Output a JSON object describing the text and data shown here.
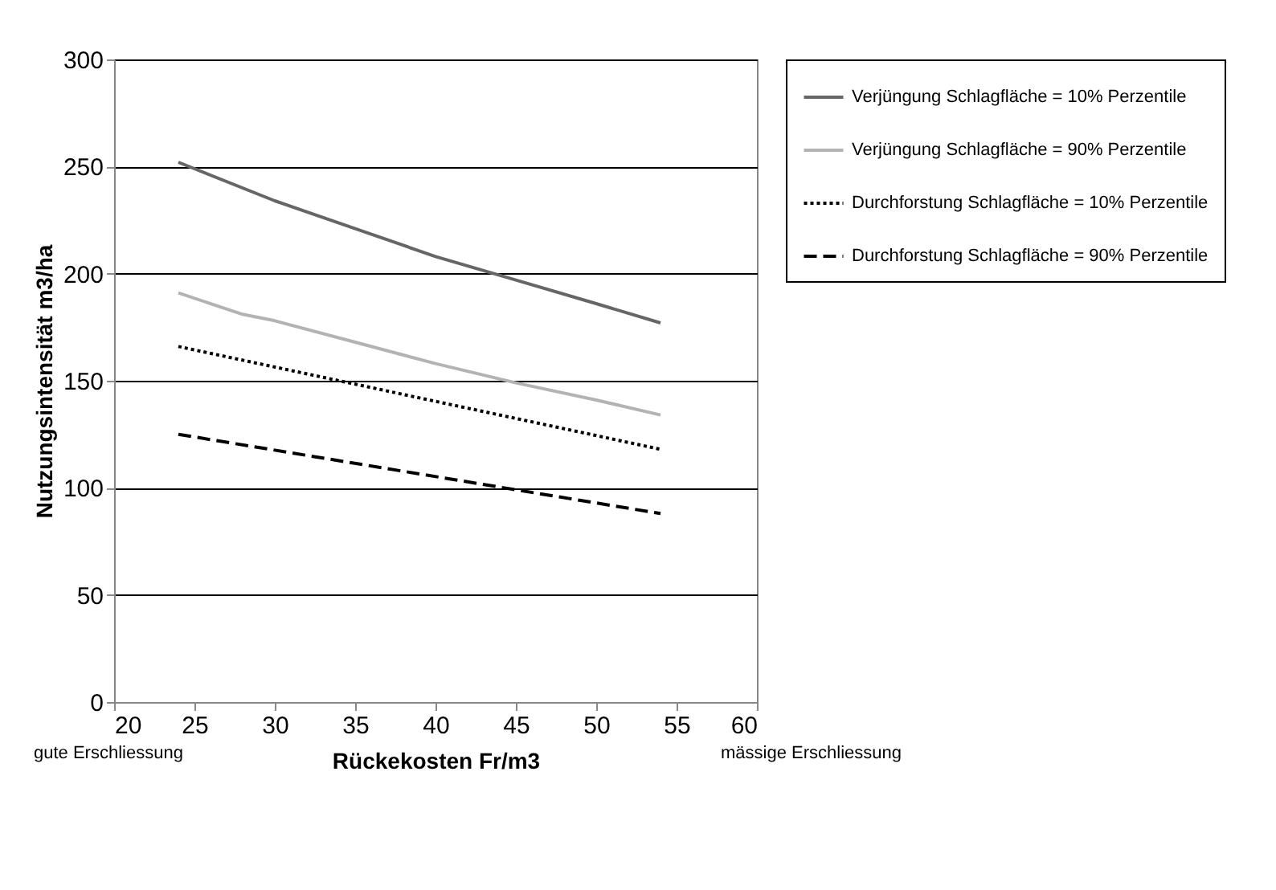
{
  "chart_data": {
    "type": "line",
    "xlabel": "Rückekosten Fr/m3",
    "ylabel": "Nutzungsintensität m3/ha",
    "xlim": [
      20,
      60
    ],
    "xticks": [
      20,
      25,
      30,
      35,
      40,
      45,
      50,
      55,
      60
    ],
    "ylim": [
      0,
      300
    ],
    "yticks": [
      0,
      50,
      100,
      150,
      200,
      250,
      300
    ],
    "grid": "y",
    "legend": "right",
    "marker": "none",
    "annotations": [
      "gute Erschliessung",
      "mässige Erschliessung"
    ],
    "series": [
      {
        "name": "Verjüngung Schlagfläche = 10% Perzentile",
        "color": "#666666",
        "line_style": "solid",
        "x": [
          24,
          30,
          35,
          40,
          45,
          50,
          54
        ],
        "values": [
          252,
          234,
          221,
          208,
          197,
          186,
          177
        ]
      },
      {
        "name": "Verjüngung Schlagfläche = 90% Perzentile",
        "color": "#b3b3b3",
        "line_style": "solid",
        "x": [
          24,
          28,
          30,
          35,
          40,
          45,
          50,
          54
        ],
        "values": [
          191,
          181,
          178,
          168,
          158,
          149,
          141,
          134
        ]
      },
      {
        "name": "Durchforstung Schlagfläche = 10% Perzentile",
        "color": "#000000",
        "line_style": "dotted",
        "x": [
          24,
          54
        ],
        "values": [
          166,
          118
        ]
      },
      {
        "name": "Durchforstung Schlagfläche = 90% Perzentile",
        "color": "#000000",
        "line_style": "dashed",
        "x": [
          24,
          54
        ],
        "values": [
          125,
          88
        ]
      }
    ]
  }
}
